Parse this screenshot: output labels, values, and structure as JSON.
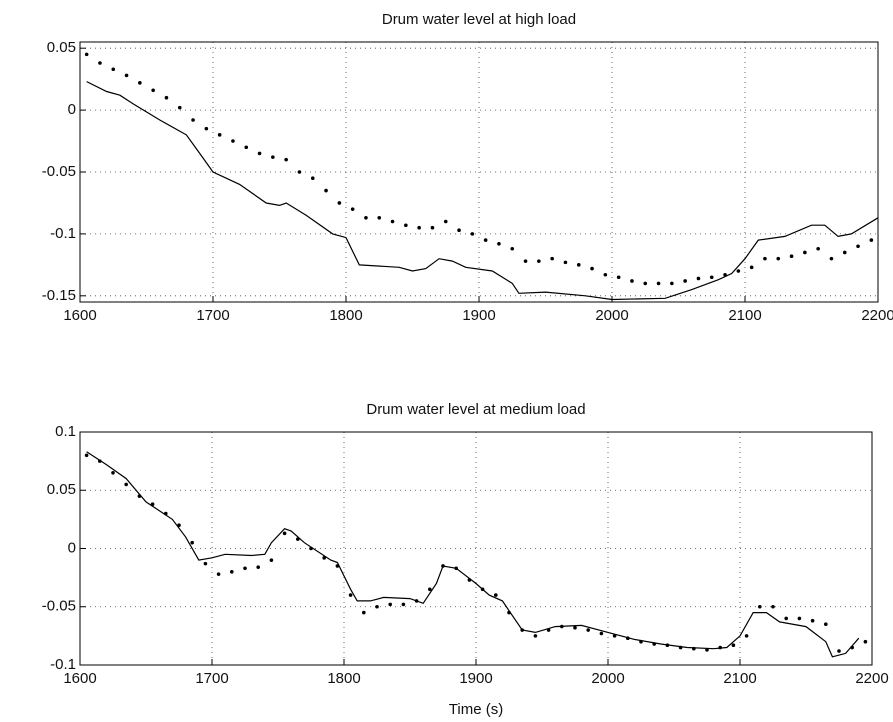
{
  "chart_data": [
    {
      "type": "line",
      "title": "Drum water level at high load",
      "xlim": [
        1600,
        2200
      ],
      "xticks": [
        1600,
        1700,
        1800,
        1900,
        2000,
        2100,
        2200
      ],
      "ylim": [
        -0.155,
        0.055
      ],
      "yticks": [
        -0.15,
        -0.1,
        -0.05,
        0,
        0.05
      ],
      "grid": true,
      "series": [
        {
          "style": "line",
          "color": "#000000",
          "x": [
            1605,
            1620,
            1630,
            1640,
            1660,
            1680,
            1690,
            1700,
            1720,
            1740,
            1750,
            1755,
            1770,
            1790,
            1800,
            1810,
            1840,
            1850,
            1860,
            1870,
            1880,
            1890,
            1910,
            1925,
            1930,
            1950,
            1980,
            2000,
            2040,
            2060,
            2080,
            2090,
            2100,
            2110,
            2130,
            2150,
            2160,
            2170,
            2180,
            2200
          ],
          "values": [
            0.023,
            0.015,
            0.012,
            0.005,
            -0.008,
            -0.02,
            -0.035,
            -0.05,
            -0.06,
            -0.075,
            -0.077,
            -0.075,
            -0.085,
            -0.1,
            -0.103,
            -0.125,
            -0.127,
            -0.13,
            -0.128,
            -0.12,
            -0.122,
            -0.127,
            -0.13,
            -0.14,
            -0.148,
            -0.147,
            -0.15,
            -0.153,
            -0.152,
            -0.145,
            -0.137,
            -0.132,
            -0.12,
            -0.105,
            -0.102,
            -0.093,
            -0.093,
            -0.102,
            -0.1,
            -0.087
          ]
        },
        {
          "style": "dots",
          "color": "#000000",
          "x": [
            1605,
            1615,
            1625,
            1635,
            1645,
            1655,
            1665,
            1675,
            1685,
            1695,
            1705,
            1715,
            1725,
            1735,
            1745,
            1755,
            1765,
            1775,
            1785,
            1795,
            1805,
            1815,
            1825,
            1835,
            1845,
            1855,
            1865,
            1875,
            1885,
            1895,
            1905,
            1915,
            1925,
            1935,
            1945,
            1955,
            1965,
            1975,
            1985,
            1995,
            2005,
            2015,
            2025,
            2035,
            2045,
            2055,
            2065,
            2075,
            2085,
            2095,
            2105,
            2115,
            2125,
            2135,
            2145,
            2155,
            2165,
            2175,
            2185,
            2195
          ],
          "values": [
            0.045,
            0.038,
            0.033,
            0.028,
            0.022,
            0.016,
            0.01,
            0.002,
            -0.008,
            -0.015,
            -0.02,
            -0.025,
            -0.03,
            -0.035,
            -0.038,
            -0.04,
            -0.05,
            -0.055,
            -0.065,
            -0.075,
            -0.08,
            -0.087,
            -0.087,
            -0.09,
            -0.093,
            -0.095,
            -0.095,
            -0.09,
            -0.097,
            -0.1,
            -0.105,
            -0.108,
            -0.112,
            -0.122,
            -0.122,
            -0.12,
            -0.123,
            -0.125,
            -0.128,
            -0.133,
            -0.135,
            -0.138,
            -0.14,
            -0.14,
            -0.14,
            -0.138,
            -0.136,
            -0.135,
            -0.133,
            -0.13,
            -0.127,
            -0.12,
            -0.12,
            -0.118,
            -0.115,
            -0.112,
            -0.12,
            -0.115,
            -0.11,
            -0.105
          ]
        }
      ]
    },
    {
      "type": "line",
      "title": "Drum water level at medium load",
      "x_label": "Time (s)",
      "xlim": [
        1600,
        2200
      ],
      "xticks": [
        1600,
        1700,
        1800,
        1900,
        2000,
        2100,
        2200
      ],
      "ylim": [
        -0.1,
        0.1
      ],
      "yticks": [
        -0.1,
        -0.05,
        0,
        0.05,
        0.1
      ],
      "grid": true,
      "series": [
        {
          "style": "line",
          "color": "#000000",
          "x": [
            1605,
            1620,
            1635,
            1650,
            1670,
            1680,
            1690,
            1700,
            1710,
            1730,
            1740,
            1745,
            1755,
            1760,
            1770,
            1790,
            1795,
            1805,
            1810,
            1820,
            1830,
            1850,
            1860,
            1870,
            1875,
            1885,
            1900,
            1910,
            1920,
            1935,
            1945,
            1960,
            1980,
            2000,
            2020,
            2040,
            2060,
            2080,
            2090,
            2100,
            2110,
            2120,
            2130,
            2150,
            2165,
            2170,
            2180,
            2190
          ],
          "values": [
            0.083,
            0.072,
            0.06,
            0.04,
            0.025,
            0.01,
            -0.01,
            -0.008,
            -0.005,
            -0.006,
            -0.005,
            0.005,
            0.017,
            0.015,
            0.005,
            -0.01,
            -0.012,
            -0.035,
            -0.045,
            -0.045,
            -0.042,
            -0.043,
            -0.047,
            -0.03,
            -0.015,
            -0.017,
            -0.03,
            -0.04,
            -0.045,
            -0.07,
            -0.072,
            -0.067,
            -0.066,
            -0.072,
            -0.078,
            -0.082,
            -0.085,
            -0.086,
            -0.085,
            -0.075,
            -0.055,
            -0.055,
            -0.063,
            -0.067,
            -0.08,
            -0.093,
            -0.09,
            -0.077
          ]
        },
        {
          "style": "dots",
          "color": "#000000",
          "x": [
            1605,
            1615,
            1625,
            1635,
            1645,
            1655,
            1665,
            1675,
            1685,
            1695,
            1705,
            1715,
            1725,
            1735,
            1745,
            1755,
            1765,
            1775,
            1785,
            1795,
            1805,
            1815,
            1825,
            1835,
            1845,
            1855,
            1865,
            1875,
            1885,
            1895,
            1905,
            1915,
            1925,
            1935,
            1945,
            1955,
            1965,
            1975,
            1985,
            1995,
            2005,
            2015,
            2025,
            2035,
            2045,
            2055,
            2065,
            2075,
            2085,
            2095,
            2105,
            2115,
            2125,
            2135,
            2145,
            2155,
            2165,
            2175,
            2185,
            2195
          ],
          "values": [
            0.08,
            0.075,
            0.065,
            0.055,
            0.045,
            0.038,
            0.03,
            0.02,
            0.005,
            -0.013,
            -0.022,
            -0.02,
            -0.017,
            -0.016,
            -0.01,
            0.013,
            0.008,
            0,
            -0.008,
            -0.015,
            -0.04,
            -0.055,
            -0.05,
            -0.048,
            -0.048,
            -0.045,
            -0.035,
            -0.015,
            -0.017,
            -0.027,
            -0.035,
            -0.04,
            -0.055,
            -0.07,
            -0.075,
            -0.07,
            -0.067,
            -0.068,
            -0.07,
            -0.073,
            -0.075,
            -0.077,
            -0.08,
            -0.082,
            -0.083,
            -0.085,
            -0.086,
            -0.087,
            -0.085,
            -0.083,
            -0.075,
            -0.05,
            -0.05,
            -0.06,
            -0.06,
            -0.062,
            -0.065,
            -0.088,
            -0.085,
            -0.08
          ]
        }
      ]
    }
  ]
}
